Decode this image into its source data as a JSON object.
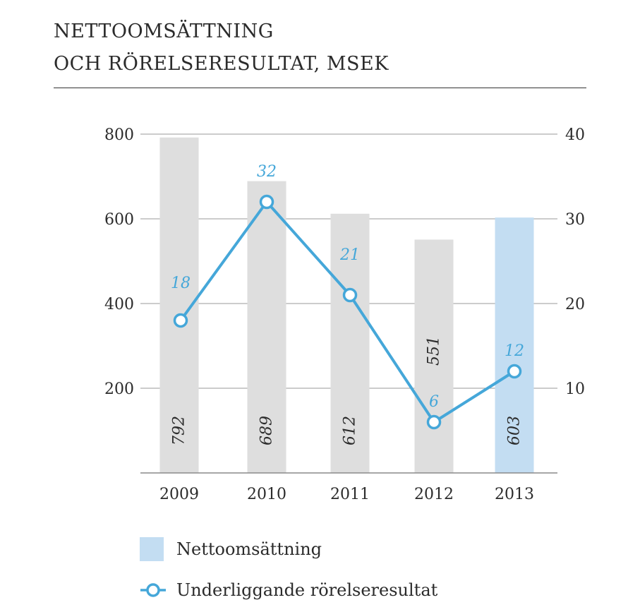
{
  "header": {
    "title_line1": "NETTOOMSÄTTNING",
    "title_line2": "OCH RÖRELSERESULTAT, MSEK"
  },
  "chart_data": {
    "type": "bar+line",
    "categories": [
      "2009",
      "2010",
      "2011",
      "2012",
      "2013"
    ],
    "series": [
      {
        "name": "Nettoomsättning",
        "type": "bar",
        "axis": "left",
        "values": [
          792,
          689,
          612,
          551,
          603
        ],
        "labels": [
          "792",
          "689",
          "612",
          "551",
          "603"
        ],
        "colors": [
          "#dedede",
          "#dedede",
          "#dedede",
          "#dedede",
          "#c3ddf2"
        ]
      },
      {
        "name": "Underliggande rörelseresultat",
        "type": "line",
        "axis": "right",
        "values": [
          18,
          32,
          21,
          6,
          12
        ],
        "labels": [
          "18",
          "32",
          "21",
          "6",
          "12"
        ],
        "color": "#45a7d9"
      }
    ],
    "y_left": {
      "min": 0,
      "max": 800,
      "ticks": [
        200,
        400,
        600,
        800
      ],
      "tick_labels": [
        "200",
        "400",
        "600",
        "800"
      ]
    },
    "y_right": {
      "min": 0,
      "max": 40,
      "ticks": [
        10,
        20,
        30,
        40
      ],
      "tick_labels": [
        "10",
        "20",
        "30",
        "40"
      ]
    },
    "grid": true,
    "legend_position": "bottom"
  },
  "legend": {
    "bar_label": "Nettoomsättning",
    "line_label": "Underliggande rörelseresultat"
  }
}
